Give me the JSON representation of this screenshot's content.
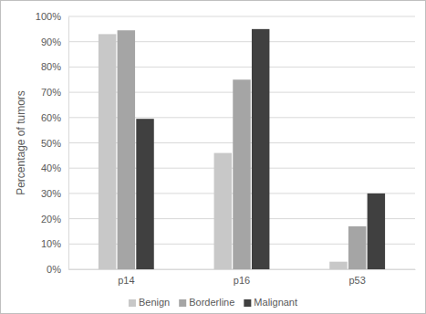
{
  "chart_data": {
    "type": "bar",
    "y_label": "Percentage of tumors",
    "categories": [
      "p14",
      "p16",
      "p53"
    ],
    "series": [
      {
        "name": "Benign",
        "color": "#c8c8c8",
        "values": [
          93,
          46,
          3
        ]
      },
      {
        "name": "Borderline",
        "color": "#a5a5a5",
        "values": [
          94.5,
          75,
          17
        ]
      },
      {
        "name": "Malignant",
        "color": "#404040",
        "values": [
          59.5,
          95,
          30
        ]
      }
    ],
    "ylim": [
      0,
      100
    ],
    "yticks": [
      {
        "value": 0,
        "label": "0%"
      },
      {
        "value": 10,
        "label": "10%"
      },
      {
        "value": 20,
        "label": "20%"
      },
      {
        "value": 30,
        "label": "30%"
      },
      {
        "value": 40,
        "label": "40%"
      },
      {
        "value": 50,
        "label": "50%"
      },
      {
        "value": 60,
        "label": "60%"
      },
      {
        "value": 70,
        "label": "70%"
      },
      {
        "value": 80,
        "label": "80%"
      },
      {
        "value": 90,
        "label": "90%"
      },
      {
        "value": 100,
        "label": "100%"
      }
    ],
    "grid": true,
    "legend": "bottom"
  }
}
